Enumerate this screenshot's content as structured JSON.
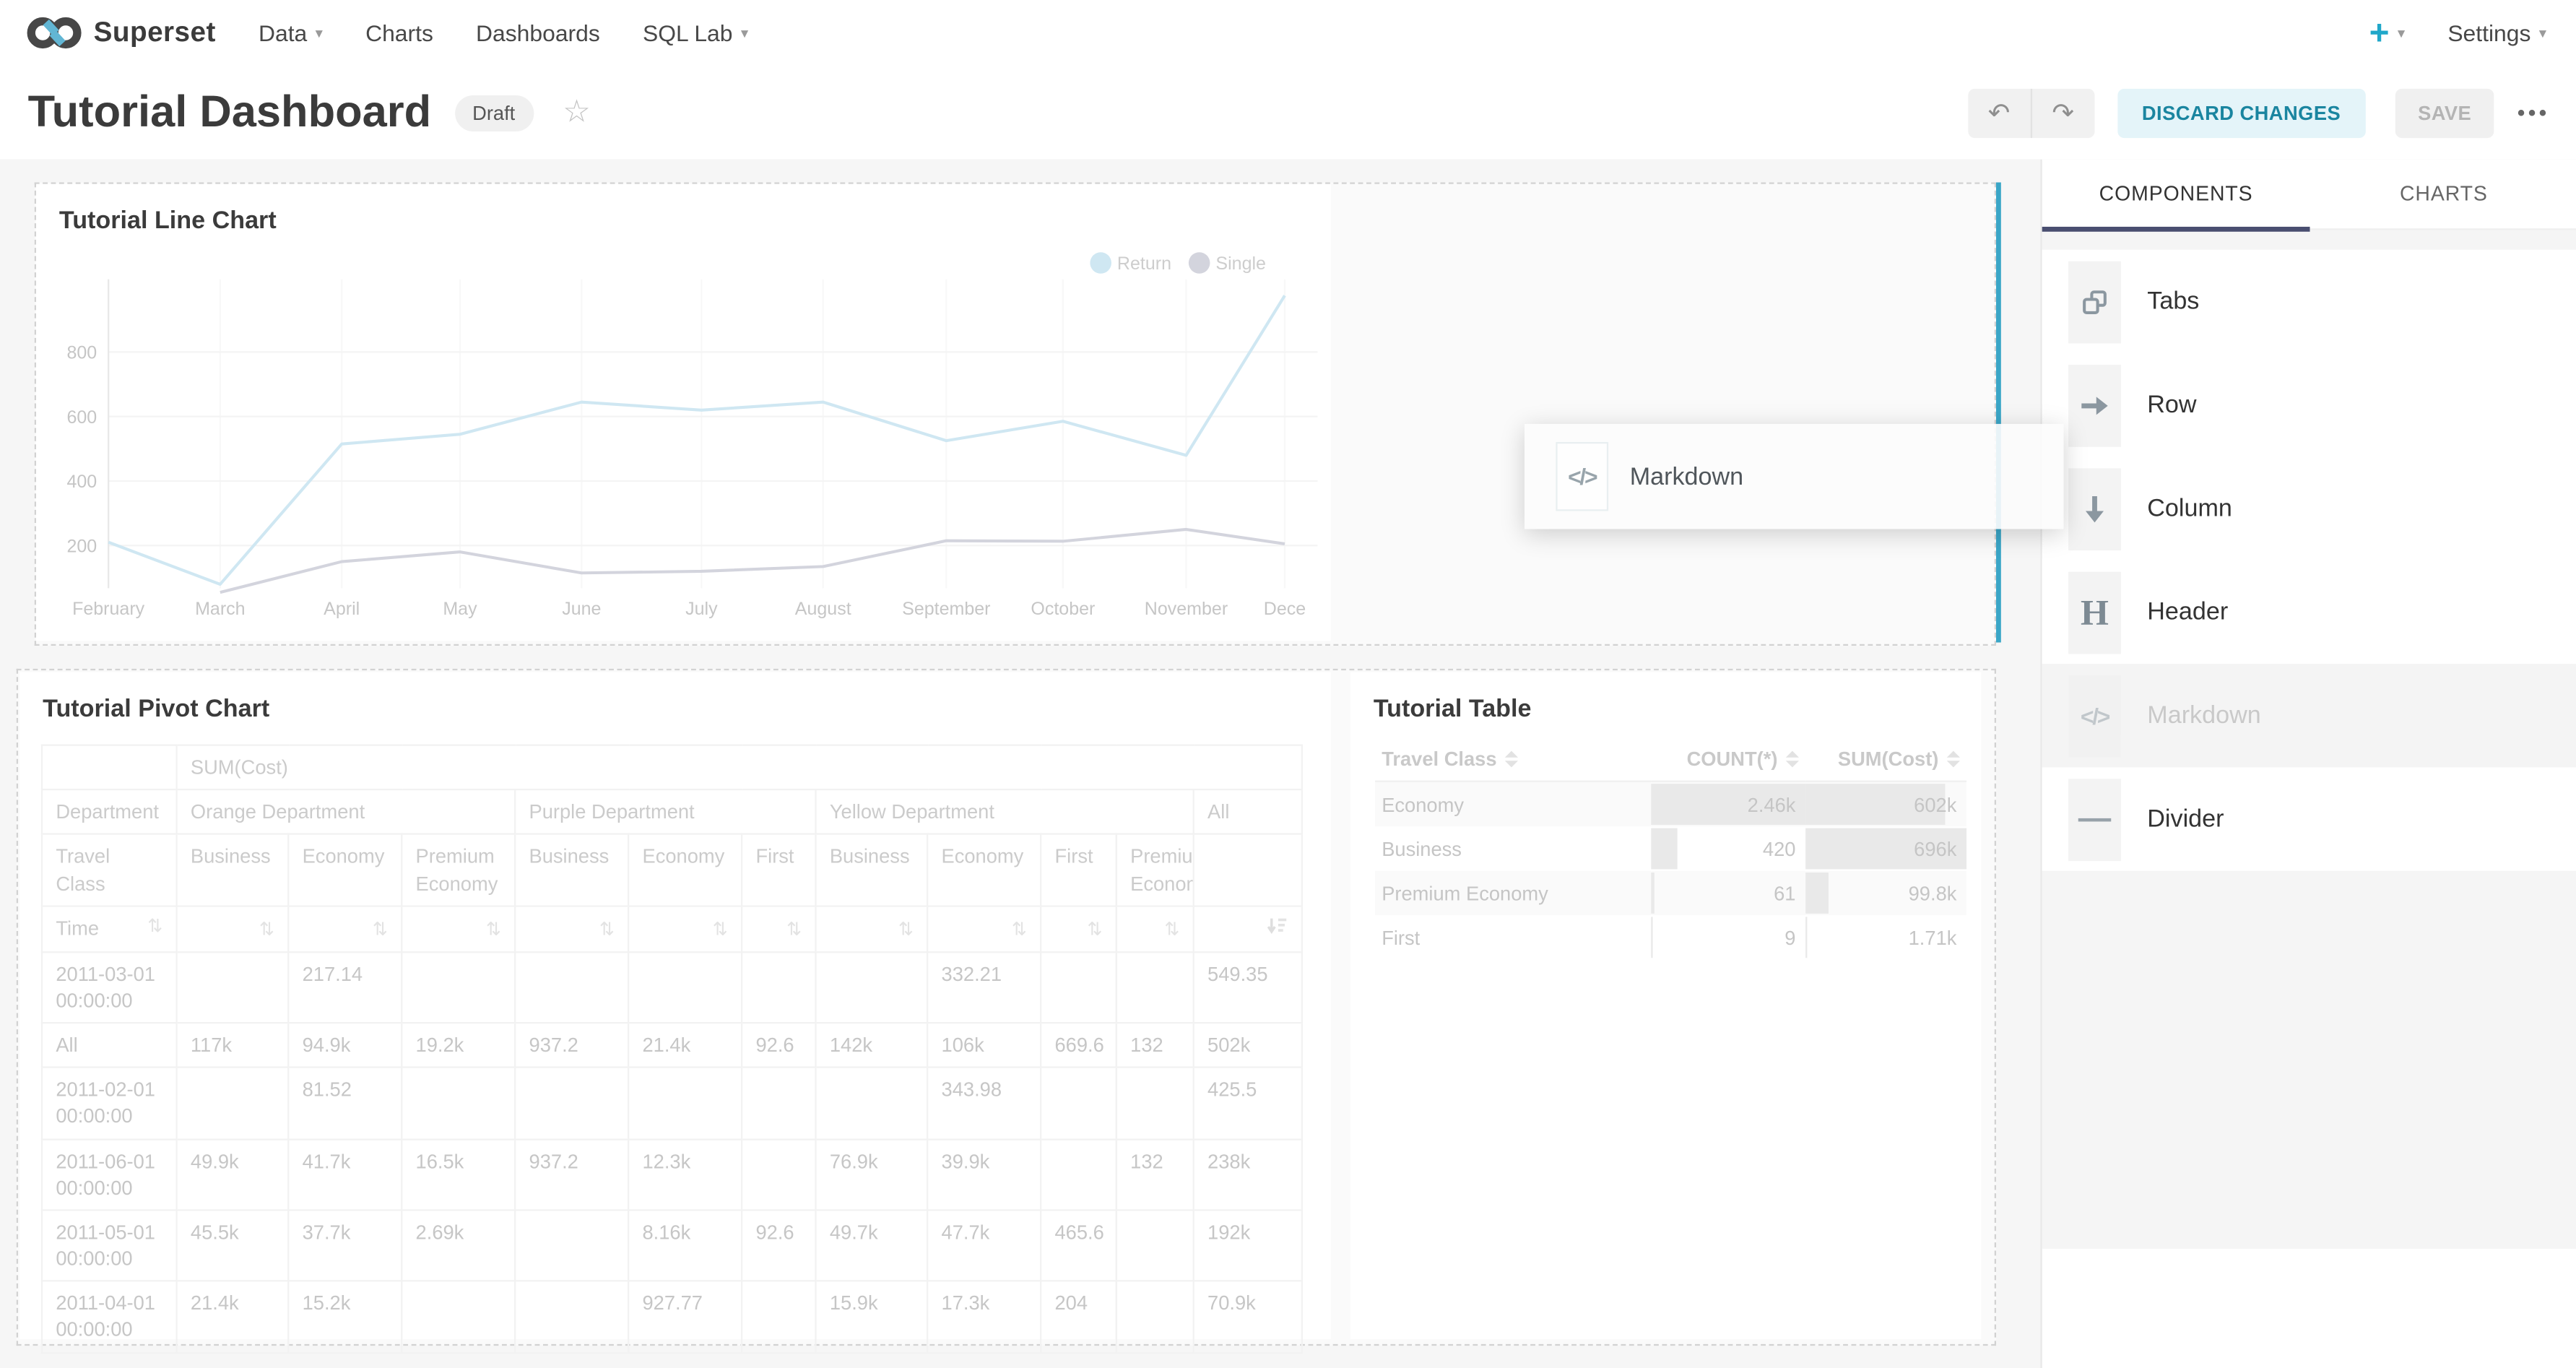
{
  "nav": {
    "brand": "Superset",
    "items": [
      {
        "label": "Data",
        "caret": true
      },
      {
        "label": "Charts",
        "caret": false
      },
      {
        "label": "Dashboards",
        "caret": false
      },
      {
        "label": "SQL Lab",
        "caret": true
      }
    ],
    "plus": "+",
    "caret": "▾",
    "settings": "Settings"
  },
  "header": {
    "title": "Tutorial Dashboard",
    "badge": "Draft",
    "star": "☆",
    "undo_glyph": "↶",
    "redo_glyph": "↷",
    "discard": "DISCARD CHANGES",
    "save": "SAVE",
    "menu_dots": "•••"
  },
  "colors": {
    "accent": "#20a7c9",
    "drop_indicator": "#3aa6c7",
    "tab_underline": "#494e70",
    "discard_bg": "#e4f4f9",
    "discard_text": "#1a85a0",
    "return_line": "#cfe7f2",
    "single_line": "#d3d4dd"
  },
  "sidebar": {
    "tabs": [
      {
        "label": "COMPONENTS",
        "active": true
      },
      {
        "label": "CHARTS",
        "active": false
      }
    ],
    "items": [
      {
        "label": "Tabs",
        "icon": "tabs-icon",
        "state": "normal"
      },
      {
        "label": "Row",
        "icon": "row-arrow-icon",
        "state": "normal"
      },
      {
        "label": "Column",
        "icon": "column-arrow-icon",
        "state": "normal"
      },
      {
        "label": "Header",
        "icon": "header-icon",
        "state": "normal"
      },
      {
        "label": "Markdown",
        "icon": "markdown-icon",
        "state": "dragging"
      },
      {
        "label": "Divider",
        "icon": "divider-icon",
        "state": "normal"
      }
    ]
  },
  "drag_overlay": {
    "label": "Markdown",
    "icon": "markdown-icon",
    "icon_glyph": "</>"
  },
  "markdown_glyph": "</>",
  "chart_data": [
    {
      "type": "line",
      "title": "Tutorial Line Chart",
      "x": [
        "February",
        "March",
        "April",
        "May",
        "June",
        "July",
        "August",
        "September",
        "October",
        "November",
        "Dece"
      ],
      "series": [
        {
          "name": "Return",
          "values": [
            210,
            80,
            515,
            545,
            645,
            620,
            645,
            525,
            585,
            480,
            975
          ]
        },
        {
          "name": "Single",
          "values": [
            null,
            55,
            150,
            180,
            115,
            120,
            135,
            215,
            213,
            250,
            205
          ]
        }
      ],
      "yticks": [
        200,
        400,
        600,
        800
      ],
      "ylim": [
        0,
        1000
      ],
      "legend_position": "top-right",
      "grid": true
    },
    {
      "type": "table",
      "title": "Tutorial Pivot Chart",
      "metric_header": "SUM(Cost)",
      "row_dim_label": "Department",
      "sub_dim_label": "Travel Class",
      "sort_row_label": "Time",
      "col_groups": [
        {
          "label": "Orange Department",
          "span": 3
        },
        {
          "label": "Purple Department",
          "span": 3
        },
        {
          "label": "Yellow Department",
          "span": 4
        },
        {
          "label": "All",
          "span": 1
        }
      ],
      "sub_cols": [
        "Business",
        "Economy",
        "Premium Economy",
        "Business",
        "Economy",
        "First",
        "Business",
        "Economy",
        "First",
        "Premium Economy",
        ""
      ],
      "sort_icons": [
        "sort",
        "sort",
        "sort",
        "sort",
        "sort",
        "sort",
        "sort",
        "sort",
        "sort",
        "sort",
        "sort",
        "sort-desc"
      ],
      "rows": [
        {
          "time": "2011-03-01 00:00:00",
          "cells": [
            "",
            "217.14",
            "",
            "",
            "",
            "",
            "",
            "332.21",
            "",
            "",
            "549.35"
          ]
        },
        {
          "time": "All",
          "cells": [
            "117k",
            "94.9k",
            "19.2k",
            "937.2",
            "21.4k",
            "92.6",
            "142k",
            "106k",
            "669.6",
            "132",
            "502k"
          ]
        },
        {
          "time": "2011-02-01 00:00:00",
          "cells": [
            "",
            "81.52",
            "",
            "",
            "",
            "",
            "",
            "343.98",
            "",
            "",
            "425.5"
          ]
        },
        {
          "time": "2011-06-01 00:00:00",
          "cells": [
            "49.9k",
            "41.7k",
            "16.5k",
            "937.2",
            "12.3k",
            "",
            "76.9k",
            "39.9k",
            "",
            "132",
            "238k"
          ]
        },
        {
          "time": "2011-05-01 00:00:00",
          "cells": [
            "45.5k",
            "37.7k",
            "2.69k",
            "",
            "8.16k",
            "92.6",
            "49.7k",
            "47.7k",
            "465.6",
            "",
            "192k"
          ]
        },
        {
          "time": "2011-04-01 00:00:00",
          "cells": [
            "21.4k",
            "15.2k",
            "",
            "",
            "927.77",
            "",
            "15.9k",
            "17.3k",
            "204",
            "",
            "70.9k"
          ]
        }
      ]
    },
    {
      "type": "table",
      "title": "Tutorial Table",
      "columns": [
        "Travel Class",
        "COUNT(*)",
        "SUM(Cost)"
      ],
      "rows": [
        {
          "travel_class": "Economy",
          "count": "2.46k",
          "sum": "602k",
          "count_pct": 100,
          "sum_pct": 86.5,
          "stripe": true
        },
        {
          "travel_class": "Business",
          "count": "420",
          "sum": "696k",
          "count_pct": 17,
          "sum_pct": 100,
          "stripe": false
        },
        {
          "travel_class": "Premium Economy",
          "count": "61",
          "sum": "99.8k",
          "count_pct": 2.5,
          "sum_pct": 14.3,
          "stripe": true
        },
        {
          "travel_class": "First",
          "count": "9",
          "sum": "1.71k",
          "count_pct": 0.5,
          "sum_pct": 0.4,
          "stripe": false
        }
      ]
    }
  ]
}
